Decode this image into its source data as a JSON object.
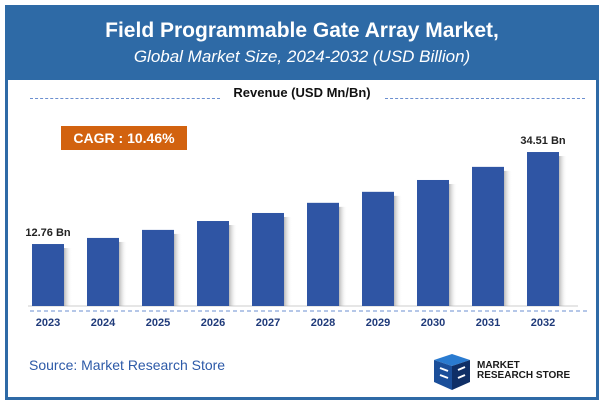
{
  "header": {
    "title": "Field Programmable Gate Array Market,",
    "subtitle": "Global Market Size, 2024-2032 (USD Billion)"
  },
  "revenue_label": "Revenue (USD Mn/Bn)",
  "cagr": "CAGR : 10.46%",
  "source": "Source: Market Research Store",
  "logo_text": "MARKET RESEARCH STORE",
  "colors": {
    "header": "#2e6aa6",
    "bar": "#2f55a4",
    "cagr": "#d2620f",
    "tick": "#1f3a7a"
  },
  "chart_data": {
    "type": "bar",
    "title": "Field Programmable Gate Array Market, Global Market Size, 2024-2032 (USD Billion)",
    "ylabel": "Revenue (USD Mn/Bn)",
    "categories": [
      "2023",
      "2024",
      "2025",
      "2026",
      "2027",
      "2028",
      "2029",
      "2030",
      "2031",
      "2032"
    ],
    "values": [
      12.76,
      14.2,
      16.1,
      18.2,
      20.1,
      22.5,
      25.1,
      27.9,
      31.0,
      34.51
    ],
    "data_labels": {
      "2023": "12.76 Bn",
      "2032": "34.51 Bn"
    },
    "grid": false
  }
}
